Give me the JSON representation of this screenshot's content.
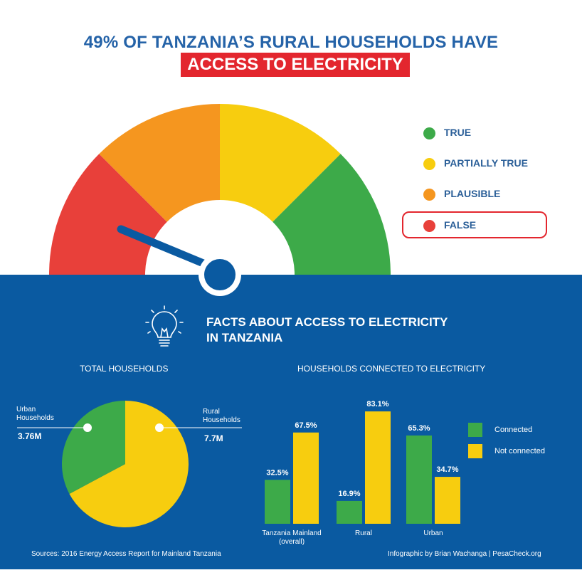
{
  "header": {
    "title_line1": "49% OF TANZANIA’S RURAL HOUSEHOLDS HAVE",
    "title_line2": "ACCESS TO ELECTRICITY"
  },
  "verdict_legend": {
    "items": [
      {
        "label": "TRUE",
        "color": "#3daa49"
      },
      {
        "label": "PARTIALLY TRUE",
        "color": "#f7cd0f"
      },
      {
        "label": "PLAUSIBLE",
        "color": "#f5961f"
      },
      {
        "label": "FALSE",
        "color": "#e8403a"
      }
    ],
    "selected": "FALSE"
  },
  "facts": {
    "title_line1": "FACTS ABOUT ACCESS TO ELECTRICITY",
    "title_line2": "IN TANZANIA"
  },
  "chart_data": [
    {
      "type": "pie",
      "title": "TOTAL HOUSEHOLDS",
      "slices": [
        {
          "label": "Urban Households",
          "value_label": "3.76M",
          "value": 3.76,
          "color": "#3daa49"
        },
        {
          "label": "Rural Households",
          "value_label": "7.7M",
          "value": 7.7,
          "color": "#f7cd0f"
        }
      ]
    },
    {
      "type": "bar",
      "title": "HOUSEHOLDS CONNECTED TO ELECTRICITY",
      "categories": [
        "Tanzania Mainland (overall)",
        "Rural",
        "Urban"
      ],
      "category_lines": [
        [
          "Tanzania Mainland",
          "(overall)"
        ],
        [
          "Rural"
        ],
        [
          "Urban"
        ]
      ],
      "series": [
        {
          "name": "Connected",
          "color": "#3daa49",
          "values": [
            32.5,
            16.9,
            65.3
          ],
          "labels": [
            "32.5%",
            "16.9%",
            "65.3%"
          ]
        },
        {
          "name": "Not connected",
          "color": "#f7cd0f",
          "values": [
            67.5,
            83.1,
            34.7
          ],
          "labels": [
            "67.5%",
            "83.1%",
            "34.7%"
          ]
        }
      ],
      "ylim": [
        0,
        100
      ],
      "grid": false,
      "legend_position": "right"
    }
  ],
  "footer": {
    "sources": "Sources:  2016 Energy Access Report for Mainland Tanzania",
    "credit": "Infographic by Brian Wachanga | PesaCheck.org"
  },
  "colors": {
    "title_blue": "#2563a8",
    "accent_red": "#e3262e",
    "panel_blue": "#0a5aa1"
  }
}
